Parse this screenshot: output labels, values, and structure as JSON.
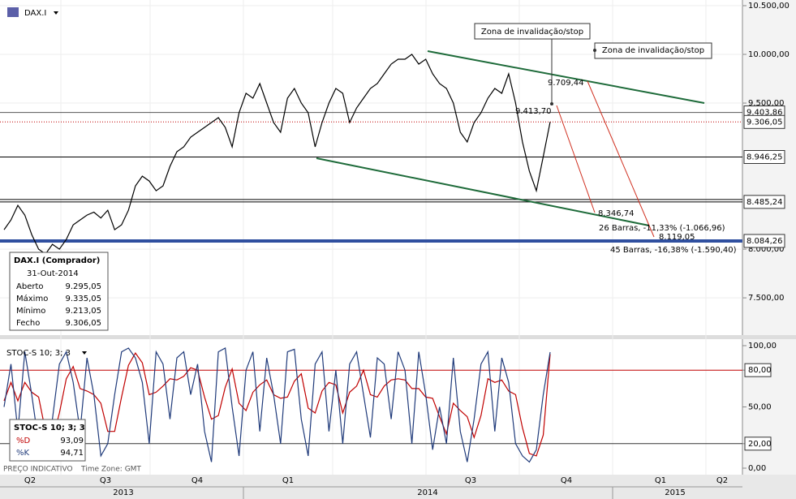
{
  "chart_data": [
    {
      "type": "line",
      "title": "DAX.I",
      "ylim": [
        7117.5,
        10558.3
      ],
      "yticks": [
        {
          "value": 10500,
          "label": "10.500,00"
        },
        {
          "value": 10000,
          "label": "10.000,00"
        },
        {
          "value": 9500,
          "label": "9.500,00"
        },
        {
          "value": 8000,
          "label": "8.000,00"
        },
        {
          "value": 7500,
          "label": "7.500,00"
        }
      ],
      "grid": true,
      "series": [
        {
          "name": "DAX.I",
          "color": "#000000",
          "values": [
            8200,
            8300,
            8450,
            8350,
            8150,
            8000,
            7950,
            8050,
            8000,
            8100,
            8250,
            8300,
            8350,
            8380,
            8320,
            8400,
            8200,
            8250,
            8400,
            8650,
            8750,
            8700,
            8600,
            8650,
            8850,
            9000,
            9050,
            9150,
            9200,
            9250,
            9300,
            9350,
            9250,
            9050,
            9400,
            9600,
            9550,
            9700,
            9500,
            9300,
            9200,
            9550,
            9650,
            9500,
            9400,
            9050,
            9300,
            9500,
            9650,
            9600,
            9300,
            9450,
            9550,
            9650,
            9700,
            9800,
            9900,
            9950,
            9950,
            10000,
            9900,
            9950,
            9800,
            9700,
            9650,
            9500,
            9200,
            9100,
            9300,
            9400,
            9550,
            9650,
            9600,
            9800,
            9500,
            9100,
            8800,
            8600,
            8950,
            9306.05
          ]
        }
      ],
      "levels": [
        {
          "value": 9403.86,
          "label": "9.403,86",
          "color": "#555555",
          "style": "solid"
        },
        {
          "value": 9306.05,
          "label": "9.306,05",
          "color": "#c00000",
          "style": "dotted"
        },
        {
          "value": 8946.25,
          "label": "8.946,25",
          "color": "#000000",
          "style": "solid"
        },
        {
          "value": 8485.24,
          "label": "8.485,24",
          "color": "#000000",
          "style": "double"
        },
        {
          "value": 8084.26,
          "label": "8.084,26",
          "color": "#2f4f9f",
          "style": "thick"
        }
      ],
      "annotations": [
        "Zona de invalidação/stop",
        "Zona de invalidação/stop",
        "9.709,44",
        "9.413,70",
        "8.346,74",
        "26 Barras, -11,33% (-1.066,96)",
        "8.119,05",
        "45 Barras, -16,38% (-1.590,40)"
      ],
      "info_box": {
        "title": "DAX.I (Comprador)",
        "date": "31-Out-2014",
        "rows": [
          [
            "Aberto",
            "9.295,05"
          ],
          [
            "Máximo",
            "9.335,05"
          ],
          [
            "Mínimo",
            "9.213,05"
          ],
          [
            "Fecho",
            "9.306,05"
          ]
        ]
      }
    },
    {
      "type": "line",
      "title": "STOC-S 10; 3; 3",
      "ylim": [
        -5.3,
        105.3
      ],
      "yticks": [
        {
          "value": 100,
          "label": "100,00"
        },
        {
          "value": 80,
          "label": "80,00"
        },
        {
          "value": 50,
          "label": "50,00"
        },
        {
          "value": 20,
          "label": "20,00"
        },
        {
          "value": 0,
          "label": "0,00"
        }
      ],
      "levels": [
        {
          "value": 80,
          "color": "#c00000"
        },
        {
          "value": 20,
          "color": "#333333"
        }
      ],
      "series": [
        {
          "name": "%D",
          "color": "#c00000",
          "values": [
            55,
            70,
            55,
            70,
            62,
            58,
            30,
            23,
            45,
            73,
            83,
            65,
            63,
            60,
            53,
            30,
            30,
            58,
            84,
            94,
            86,
            60,
            62,
            67,
            73,
            72,
            75,
            82,
            80,
            58,
            40,
            43,
            66,
            81,
            53,
            47,
            62,
            68,
            72,
            60,
            57,
            58,
            71,
            77,
            49,
            45,
            63,
            70,
            68,
            45,
            62,
            67,
            80,
            60,
            58,
            67,
            72,
            73,
            72,
            65,
            65,
            58,
            57,
            42,
            28,
            53,
            47,
            42,
            25,
            43,
            73,
            70,
            72,
            63,
            60,
            33,
            12,
            10,
            27,
            93.09
          ]
        },
        {
          "name": "%K",
          "color": "#1f3a7a",
          "values": [
            50,
            85,
            30,
            95,
            60,
            20,
            10,
            40,
            85,
            95,
            70,
            30,
            90,
            60,
            10,
            20,
            60,
            95,
            98,
            90,
            70,
            20,
            95,
            85,
            40,
            90,
            95,
            60,
            85,
            30,
            5,
            95,
            98,
            50,
            10,
            80,
            95,
            30,
            90,
            60,
            20,
            95,
            97,
            40,
            10,
            85,
            95,
            30,
            80,
            20,
            85,
            95,
            60,
            25,
            90,
            85,
            40,
            95,
            80,
            20,
            95,
            60,
            15,
            50,
            20,
            90,
            30,
            5,
            40,
            85,
            95,
            30,
            90,
            70,
            20,
            10,
            5,
            15,
            60,
            94.71
          ]
        }
      ],
      "info_box": {
        "title": "STOC-S 10; 3; 3",
        "rows": [
          [
            "%D",
            "93,09"
          ],
          [
            "%K",
            "94,71"
          ]
        ]
      }
    }
  ],
  "x_axis": {
    "quarters": [
      "Q2",
      "Q3",
      "Q4",
      "Q1",
      "Q3",
      "Q4",
      "Q1",
      "Q2"
    ],
    "years": [
      "2013",
      "2014",
      "2015"
    ]
  },
  "footer": {
    "note": "PREÇO INDICATIVO",
    "timezone": "Time Zone: GMT"
  }
}
